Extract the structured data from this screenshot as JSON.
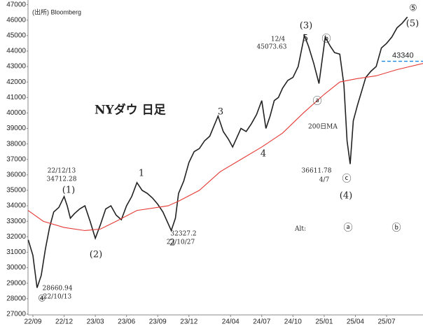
{
  "chart_data": {
    "type": "line",
    "title": "NYダウ 日足",
    "source": "(出所) Bloomberg",
    "xlim": [
      -0.47,
      37.5
    ],
    "xticks": [
      {
        "value": 0,
        "label": "22/09"
      },
      {
        "value": 3,
        "label": "22/12"
      },
      {
        "value": 6,
        "label": "23/03"
      },
      {
        "value": 9,
        "label": "23/06"
      },
      {
        "value": 12,
        "label": "23/09"
      },
      {
        "value": 15,
        "label": "23/12"
      },
      {
        "value": 19,
        "label": "24/04"
      },
      {
        "value": 22,
        "label": "24/07"
      },
      {
        "value": 25,
        "label": "24/10"
      },
      {
        "value": 28,
        "label": "25/01"
      },
      {
        "value": 31,
        "label": "25/04"
      },
      {
        "value": 34,
        "label": "25/07"
      }
    ],
    "ylim": [
      26950,
      47300
    ],
    "yticks": [
      27000,
      28000,
      29000,
      30000,
      31000,
      32000,
      33000,
      34000,
      35000,
      36000,
      37000,
      38000,
      39000,
      40000,
      41000,
      42000,
      43000,
      44000,
      45000,
      46000,
      47000
    ],
    "series": [
      {
        "name": "NYダウ",
        "color": "#222222",
        "x": [
          -0.45,
          0,
          0.4,
          0.8,
          1.2,
          1.6,
          2,
          2.5,
          3,
          3.3,
          3.6,
          4,
          4.5,
          5,
          5.5,
          6,
          6.5,
          7,
          7.5,
          8,
          8.5,
          9,
          9.5,
          10,
          10.5,
          11,
          11.5,
          12,
          12.5,
          13.3,
          13.7,
          14,
          14.5,
          15,
          15.5,
          16,
          16.5,
          17,
          17.8,
          18.3,
          18.8,
          19.2,
          19.6,
          20,
          20.5,
          21,
          21.5,
          22,
          22.4,
          22.8,
          23.2,
          23.6,
          24,
          24.5,
          25,
          25.5,
          26.1,
          26.5,
          27,
          27.5,
          28.1,
          28.6,
          29,
          29.5,
          29.9,
          30.2,
          30.5,
          30.8,
          31.2,
          31.6,
          32,
          32.5,
          33,
          33.5,
          34,
          34.5,
          35,
          35.5,
          36
        ],
        "values": [
          31800,
          30800,
          28700,
          29500,
          31200,
          32600,
          33600,
          33900,
          34600,
          34000,
          33200,
          33500,
          33800,
          34000,
          33000,
          31900,
          32800,
          33800,
          34000,
          33400,
          33100,
          34000,
          34600,
          35500,
          35000,
          34800,
          34500,
          34100,
          33600,
          32400,
          33200,
          34800,
          35600,
          36800,
          37500,
          37700,
          38200,
          38500,
          39800,
          38800,
          38300,
          37800,
          38400,
          39000,
          38800,
          39300,
          39900,
          40800,
          39000,
          39800,
          40800,
          41000,
          41600,
          42100,
          42300,
          43000,
          45000,
          44300,
          43200,
          41900,
          44900,
          44300,
          43900,
          43800,
          41800,
          38200,
          36700,
          39500,
          40500,
          41400,
          42300,
          42700,
          43000,
          44200,
          44500,
          44900,
          45500,
          45800,
          46200
        ]
      },
      {
        "name": "200日MA",
        "color": "#e53935",
        "x": [
          -0.47,
          1,
          3,
          5,
          6.5,
          8,
          10,
          12,
          13,
          14,
          16,
          18,
          20,
          22,
          24,
          26,
          28,
          29.5,
          31,
          33,
          35,
          37.5
        ],
        "values": [
          33700,
          33000,
          32600,
          32400,
          32500,
          33000,
          33700,
          33900,
          34000,
          34300,
          35000,
          36200,
          37000,
          37800,
          38700,
          40000,
          41200,
          42000,
          42200,
          42400,
          42800,
          43200
        ]
      }
    ],
    "reference_line": {
      "value": 43340,
      "color": "#1e88e5"
    },
    "annotations": [
      "22/12/13",
      "34712.28",
      "(1)",
      "1",
      "(2)",
      "2",
      "32327.2",
      "23/10/27",
      "28660.94",
      "22/10/13",
      "④",
      "3",
      "4",
      "12/4",
      "45073.63",
      "(3)",
      "5",
      "ⓑ",
      "ⓐ",
      "36611.78",
      "4/7",
      "ⓒ",
      "(4)",
      "⑤",
      "(5)",
      "Alt:",
      "ⓐ",
      "ⓑ"
    ]
  }
}
